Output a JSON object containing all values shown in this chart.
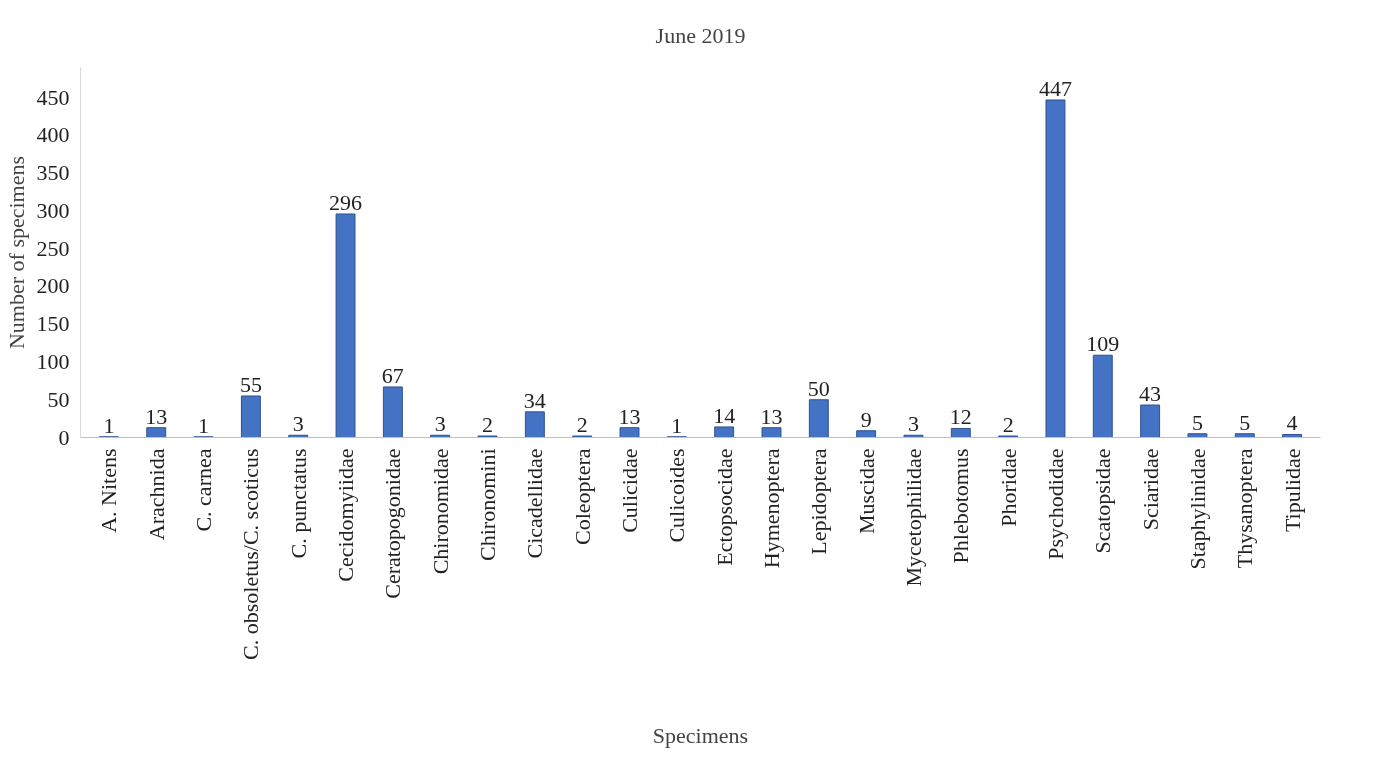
{
  "chart_data": {
    "type": "bar",
    "title": "June 2019",
    "xlabel": "Specimens",
    "ylabel": "Number of specimens",
    "categories": [
      "A. Nitens",
      "Arachnida",
      "C. carnea",
      "C. obsoletus/C. scoticus",
      "C. punctatus",
      "Cecidomyiidae",
      "Ceratopogonidae",
      "Chironomidae",
      "Chironomini",
      "Cicadellidae",
      "Coleoptera",
      "Culicidae",
      "Culicoides",
      "Ectopsocidae",
      "Hymenoptera",
      "Lepidoptera",
      "Muscidae",
      "Mycetophilidae",
      "Phlebotomus",
      "Phoridae",
      "Psychodidae",
      "Scatopsidae",
      "Sciaridae",
      "Staphylinidae",
      "Thysanoptera",
      "Tipulidae"
    ],
    "values": [
      1,
      13,
      1,
      55,
      3,
      296,
      67,
      3,
      2,
      34,
      2,
      13,
      1,
      14,
      13,
      50,
      9,
      3,
      12,
      2,
      447,
      109,
      43,
      5,
      5,
      4
    ],
    "color": "#4472c4",
    "ylim": [
      0,
      490
    ],
    "yticks": [
      0,
      50,
      100,
      150,
      200,
      250,
      300,
      350,
      400,
      450
    ],
    "grid": false,
    "data_labels": true
  }
}
